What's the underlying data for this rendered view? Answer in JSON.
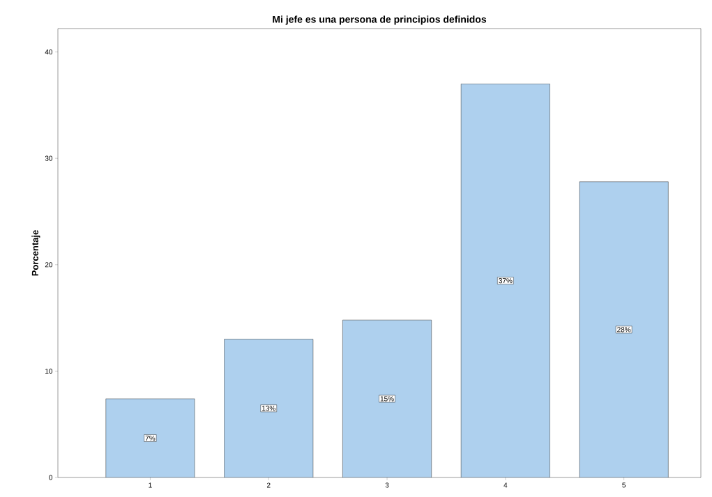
{
  "chart_data": {
    "type": "bar",
    "title": "Mi jefe es una persona de principios definidos",
    "ylabel": "Porcentaje",
    "categories": [
      "1",
      "2",
      "3",
      "4",
      "5"
    ],
    "values": [
      7.4,
      13.0,
      14.8,
      37.0,
      27.8
    ],
    "value_labels": [
      "7%",
      "13%",
      "15%",
      "37%",
      "28%"
    ],
    "color": "#aed0ee",
    "ylim": [
      0,
      42.2
    ],
    "yticks": [
      0,
      10,
      20,
      30,
      40
    ],
    "grid": false
  }
}
